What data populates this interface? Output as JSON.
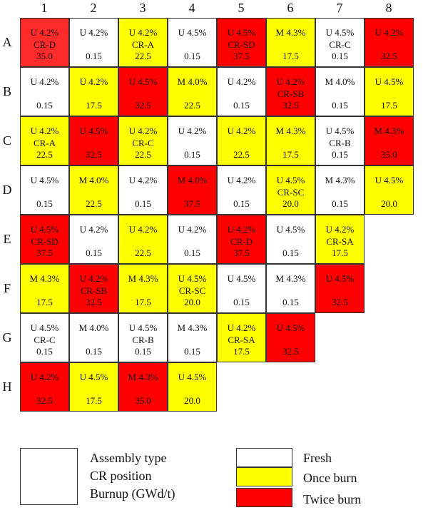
{
  "columns": [
    "1",
    "2",
    "3",
    "4",
    "5",
    "6",
    "7",
    "8"
  ],
  "rows": [
    "A",
    "B",
    "C",
    "D",
    "E",
    "F",
    "G",
    "H"
  ],
  "colors": {
    "fresh": "#ffffff",
    "once": "#ffff00",
    "twice": "#ff0000",
    "twice_alt": "#ff2a2a"
  },
  "grid": [
    [
      {
        "type": "U 4.2%",
        "cr": "CR-D",
        "burnup": "35.0",
        "status": "twice_alt"
      },
      {
        "type": "U 4.2%",
        "cr": "",
        "burnup": "0.15",
        "status": "fresh"
      },
      {
        "type": "U 4.2%",
        "cr": "CR-A",
        "burnup": "22.5",
        "status": "once"
      },
      {
        "type": "U 4.5%",
        "cr": "",
        "burnup": "0.15",
        "status": "fresh"
      },
      {
        "type": "U 4.5%",
        "cr": "CR-SD",
        "burnup": "37.5",
        "status": "twice"
      },
      {
        "type": "M 4.3%",
        "cr": "",
        "burnup": "17.5",
        "status": "once"
      },
      {
        "type": "U 4.5%",
        "cr": "CR-C",
        "burnup": "0.15",
        "status": "fresh"
      },
      {
        "type": "U 4.2%",
        "cr": "",
        "burnup": "32.5",
        "status": "twice"
      }
    ],
    [
      {
        "type": "U 4.2%",
        "cr": "",
        "burnup": "0.15",
        "status": "fresh"
      },
      {
        "type": "U 4.2%",
        "cr": "",
        "burnup": "17.5",
        "status": "once"
      },
      {
        "type": "U 4.5%",
        "cr": "",
        "burnup": "32.5",
        "status": "twice"
      },
      {
        "type": "M 4.0%",
        "cr": "",
        "burnup": "22.5",
        "status": "once"
      },
      {
        "type": "U 4.2%",
        "cr": "",
        "burnup": "0.15",
        "status": "fresh"
      },
      {
        "type": "U 4.2%",
        "cr": "CR-SB",
        "burnup": "32.5",
        "status": "twice"
      },
      {
        "type": "M 4.0%",
        "cr": "",
        "burnup": "0.15",
        "status": "fresh"
      },
      {
        "type": "U 4.5%",
        "cr": "",
        "burnup": "17.5",
        "status": "once"
      }
    ],
    [
      {
        "type": "U 4.2%",
        "cr": "CR-A",
        "burnup": "22.5",
        "status": "once"
      },
      {
        "type": "U 4.5%",
        "cr": "",
        "burnup": "32.5",
        "status": "twice"
      },
      {
        "type": "U 4.2%",
        "cr": "CR-C",
        "burnup": "22.5",
        "status": "once"
      },
      {
        "type": "U 4.2%",
        "cr": "",
        "burnup": "0.15",
        "status": "fresh"
      },
      {
        "type": "U 4.2%",
        "cr": "",
        "burnup": "22.5",
        "status": "once"
      },
      {
        "type": "M 4.3%",
        "cr": "",
        "burnup": "17.5",
        "status": "once"
      },
      {
        "type": "U 4.5%",
        "cr": "CR-B",
        "burnup": "0.15",
        "status": "fresh"
      },
      {
        "type": "M 4.3%",
        "cr": "",
        "burnup": "35.0",
        "status": "twice"
      }
    ],
    [
      {
        "type": "U 4.5%",
        "cr": "",
        "burnup": "0.15",
        "status": "fresh"
      },
      {
        "type": "M 4.0%",
        "cr": "",
        "burnup": "22.5",
        "status": "once"
      },
      {
        "type": "U 4.2%",
        "cr": "",
        "burnup": "0.15",
        "status": "fresh"
      },
      {
        "type": "M 4.0%",
        "cr": "",
        "burnup": "37.5",
        "status": "twice"
      },
      {
        "type": "U 4.2%",
        "cr": "",
        "burnup": "0.15",
        "status": "fresh"
      },
      {
        "type": "U 4.5%",
        "cr": "CR-SC",
        "burnup": "20.0",
        "status": "once"
      },
      {
        "type": "M 4.3%",
        "cr": "",
        "burnup": "0.15",
        "status": "fresh"
      },
      {
        "type": "U 4.5%",
        "cr": "",
        "burnup": "20.0",
        "status": "once"
      }
    ],
    [
      {
        "type": "U 4.5%",
        "cr": "CR-SD",
        "burnup": "37.5",
        "status": "twice"
      },
      {
        "type": "U 4.2%",
        "cr": "",
        "burnup": "0.15",
        "status": "fresh"
      },
      {
        "type": "U 4.2%",
        "cr": "",
        "burnup": "22.5",
        "status": "once"
      },
      {
        "type": "U 4.2%",
        "cr": "",
        "burnup": "0.15",
        "status": "fresh"
      },
      {
        "type": "U 4.2%",
        "cr": "CR-D",
        "burnup": "37.5",
        "status": "twice"
      },
      {
        "type": "U 4.5%",
        "cr": "",
        "burnup": "0.15",
        "status": "fresh"
      },
      {
        "type": "U 4.2%",
        "cr": "CR-SA",
        "burnup": "17.5",
        "status": "once"
      }
    ],
    [
      {
        "type": "M 4.3%",
        "cr": "",
        "burnup": "17.5",
        "status": "once"
      },
      {
        "type": "U 4.2%",
        "cr": "CR-SB",
        "burnup": "32.5",
        "status": "twice"
      },
      {
        "type": "M 4.3%",
        "cr": "",
        "burnup": "17.5",
        "status": "once"
      },
      {
        "type": "U 4.5%",
        "cr": "CR-SC",
        "burnup": "20.0",
        "status": "once"
      },
      {
        "type": "U 4.5%",
        "cr": "",
        "burnup": "0.15",
        "status": "fresh"
      },
      {
        "type": "M 4.3%",
        "cr": "",
        "burnup": "0.15",
        "status": "fresh"
      },
      {
        "type": "U 4.5%",
        "cr": "",
        "burnup": "32.5",
        "status": "twice"
      }
    ],
    [
      {
        "type": "U 4.5%",
        "cr": "CR-C",
        "burnup": "0.15",
        "status": "fresh"
      },
      {
        "type": "M 4.0%",
        "cr": "",
        "burnup": "0.15",
        "status": "fresh"
      },
      {
        "type": "U 4.5%",
        "cr": "CR-B",
        "burnup": "0.15",
        "status": "fresh"
      },
      {
        "type": "M 4.3%",
        "cr": "",
        "burnup": "0.15",
        "status": "fresh"
      },
      {
        "type": "U 4.2%",
        "cr": "CR-SA",
        "burnup": "17.5",
        "status": "once"
      },
      {
        "type": "U 4.5%",
        "cr": "",
        "burnup": "32.5",
        "status": "twice"
      }
    ],
    [
      {
        "type": "U 4.2%",
        "cr": "",
        "burnup": "32.5",
        "status": "twice"
      },
      {
        "type": "U 4.5%",
        "cr": "",
        "burnup": "17.5",
        "status": "once"
      },
      {
        "type": "M 4.3%",
        "cr": "",
        "burnup": "35.0",
        "status": "twice"
      },
      {
        "type": "U 4.5%",
        "cr": "",
        "burnup": "20.0",
        "status": "once"
      }
    ]
  ],
  "legend": {
    "desc_lines": [
      "Assembly type",
      "CR position",
      "Burnup (GWd/t)"
    ],
    "items": [
      {
        "label": "Fresh",
        "status": "fresh"
      },
      {
        "label": "Once burn",
        "status": "once"
      },
      {
        "label": "Twice burn",
        "status": "twice"
      }
    ]
  }
}
